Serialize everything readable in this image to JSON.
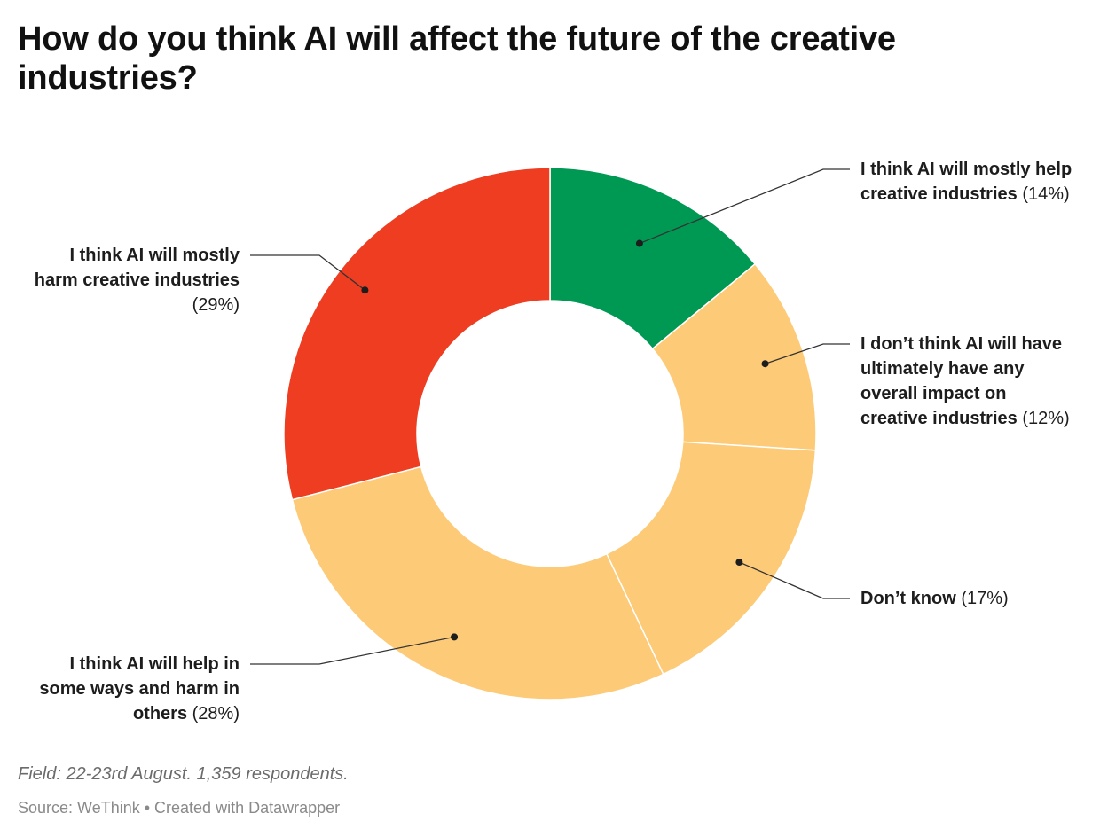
{
  "chart_data": {
    "type": "pie",
    "donut": true,
    "title": "How do you think AI will affect the future of the creative industries?",
    "unit": "%",
    "slices": [
      {
        "label": "I think AI will mostly help creative industries",
        "value": 14,
        "value_label": "(14%)",
        "color": "#009954"
      },
      {
        "label": "I don’t think AI will have ultimately have any overall impact on creative industries",
        "value": 12,
        "value_label": "(12%)",
        "color": "#fdca77"
      },
      {
        "label": "Don’t know",
        "value": 17,
        "value_label": "(17%)",
        "color": "#fdca77"
      },
      {
        "label": "I think AI will help in some ways and harm in others",
        "value": 28,
        "value_label": "(28%)",
        "color": "#fdca77"
      },
      {
        "label": "I think AI will mostly harm creative industries",
        "value": 29,
        "value_label": "(29%)",
        "color": "#ee3d21"
      }
    ]
  },
  "footer": {
    "note": "Field: 22-23rd August. 1,359 respondents.",
    "source_prefix": "Source: WeThink • ",
    "created_with": "Created with Datawrapper"
  }
}
